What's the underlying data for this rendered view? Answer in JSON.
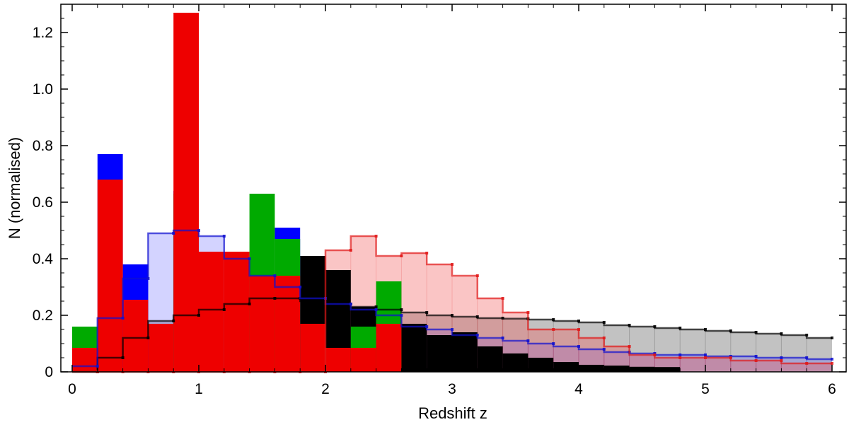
{
  "chart_data": {
    "type": "bar",
    "xlabel": "Redshift z",
    "ylabel": "N (normalised)",
    "xlim": [
      0,
      6
    ],
    "ylim": [
      0,
      1.3
    ],
    "x_ticks": [
      "0",
      "1",
      "2",
      "3",
      "4",
      "5",
      "6"
    ],
    "y_ticks": [
      "0",
      "0.2",
      "0.4",
      "0.6",
      "0.8",
      "1.0",
      "1.2"
    ],
    "bin_edges": [
      0,
      0.2,
      0.4,
      0.6,
      0.8,
      1.0,
      1.2,
      1.4,
      1.6,
      1.8,
      2.0,
      2.2,
      2.4,
      2.6,
      2.8,
      3.0,
      3.2,
      3.4,
      3.6,
      3.8,
      4.0,
      4.2,
      4.4,
      4.6,
      4.8,
      5.0,
      5.2,
      5.4,
      5.6,
      5.8,
      6.0
    ],
    "step_series": [
      {
        "color": "#000000",
        "fill": "#9a9a9a",
        "fill_opacity": 0.6,
        "values": [
          0.0,
          0.05,
          0.12,
          0.18,
          0.2,
          0.22,
          0.24,
          0.26,
          0.26,
          0.25,
          0.24,
          0.23,
          0.22,
          0.21,
          0.2,
          0.195,
          0.19,
          0.188,
          0.185,
          0.18,
          0.175,
          0.165,
          0.16,
          0.155,
          0.15,
          0.145,
          0.14,
          0.135,
          0.13,
          0.12
        ]
      },
      {
        "color": "#1010d0",
        "fill": "#6060ff",
        "fill_opacity": 0.28,
        "values": [
          0.02,
          0.19,
          0.33,
          0.49,
          0.5,
          0.48,
          0.4,
          0.34,
          0.3,
          0.26,
          0.24,
          0.22,
          0.2,
          0.16,
          0.15,
          0.13,
          0.12,
          0.11,
          0.1,
          0.09,
          0.08,
          0.07,
          0.065,
          0.06,
          0.06,
          0.055,
          0.055,
          0.05,
          0.05,
          0.045
        ]
      },
      {
        "color": "#e01818",
        "fill": "#f25858",
        "fill_opacity": 0.35,
        "values": [
          0.0,
          0.0,
          0.0,
          0.0,
          0.0,
          0.0,
          0.0,
          0.0,
          0.0,
          0.0,
          0.43,
          0.48,
          0.41,
          0.42,
          0.38,
          0.34,
          0.26,
          0.21,
          0.15,
          0.15,
          0.12,
          0.09,
          0.06,
          0.05,
          0.05,
          0.05,
          0.04,
          0.04,
          0.03,
          0.03
        ]
      }
    ],
    "bar_series": [
      {
        "color": "#000000",
        "values": [
          0,
          0,
          0,
          0,
          0,
          0,
          0,
          0,
          0.22,
          0.41,
          0.36,
          0.23,
          0.09,
          0.17,
          0.13,
          0.14,
          0.09,
          0.065,
          0.05,
          0.035,
          0.025,
          0.022,
          0.018,
          0.017,
          0,
          0,
          0,
          0,
          0,
          0
        ]
      },
      {
        "color": "#0000ff",
        "values": [
          0,
          0.77,
          0.38,
          0,
          0.64,
          0,
          0,
          0,
          0.51,
          0,
          0,
          0,
          0,
          0,
          0,
          0,
          0,
          0,
          0,
          0,
          0,
          0,
          0,
          0,
          0,
          0,
          0,
          0,
          0,
          0
        ]
      },
      {
        "color": "#00aa00",
        "values": [
          0.16,
          0,
          0,
          0,
          0.63,
          0,
          0,
          0.63,
          0.47,
          0,
          0,
          0.16,
          0.32,
          0,
          0,
          0,
          0,
          0,
          0,
          0,
          0,
          0,
          0,
          0,
          0,
          0,
          0,
          0,
          0,
          0
        ]
      },
      {
        "color": "#ee0000",
        "values": [
          0.085,
          0.68,
          0.255,
          0.17,
          1.27,
          0.425,
          0.425,
          0.34,
          0.34,
          0.17,
          0.085,
          0.085,
          0.17,
          0,
          0,
          0,
          0,
          0,
          0,
          0,
          0,
          0,
          0,
          0,
          0,
          0,
          0,
          0,
          0,
          0
        ]
      }
    ],
    "grid": false,
    "legend": "none"
  }
}
